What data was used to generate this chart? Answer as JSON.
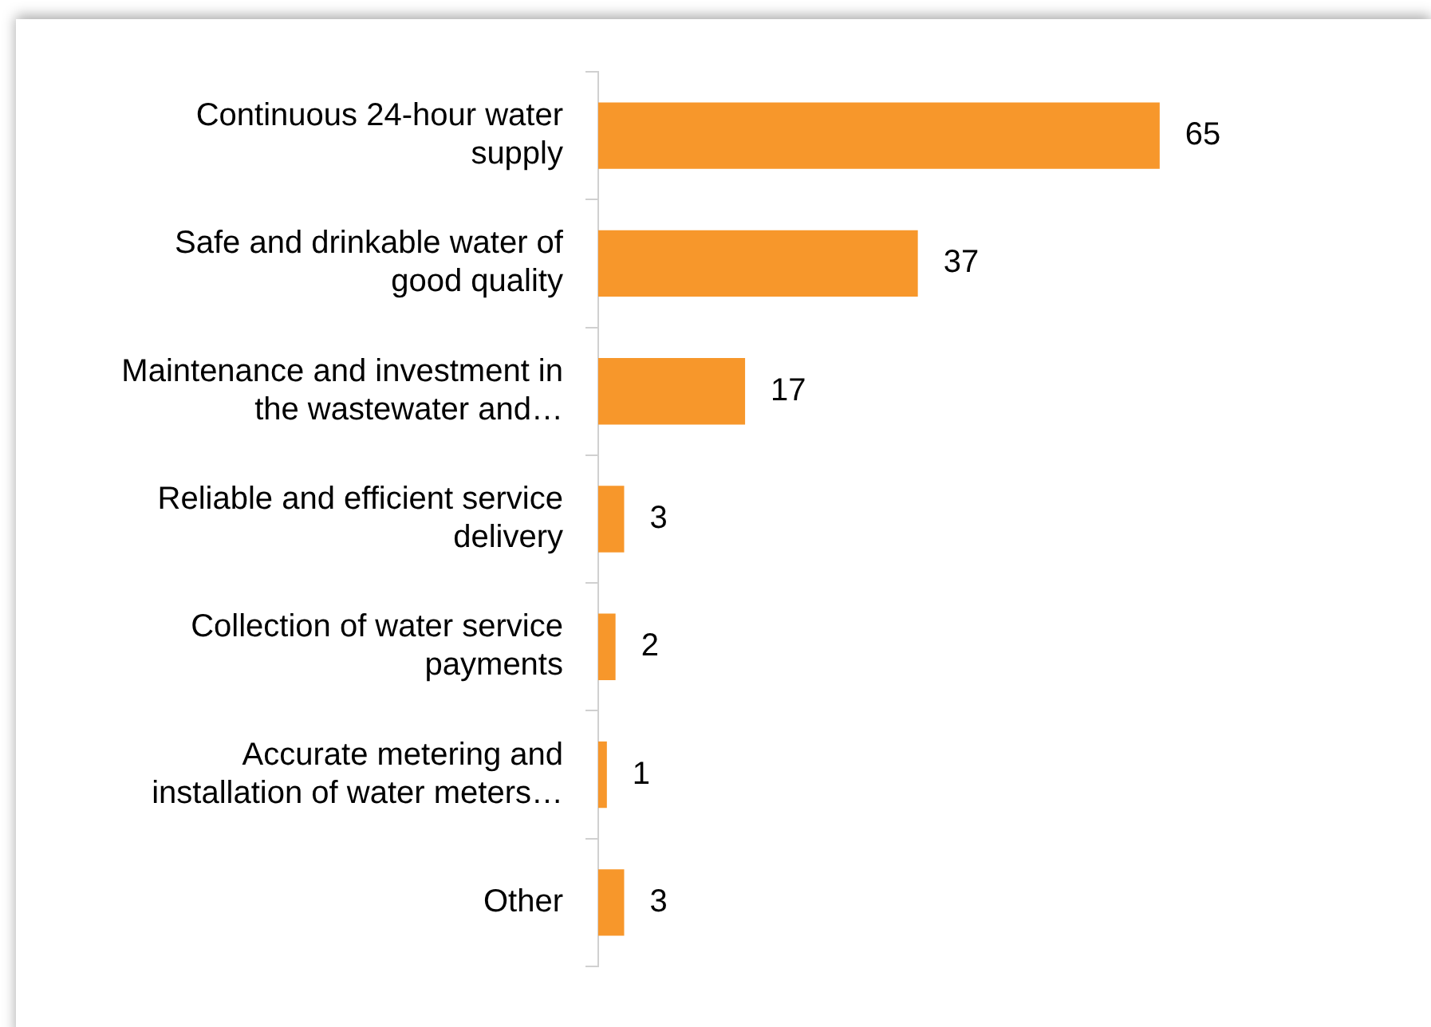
{
  "chart_data": {
    "type": "bar",
    "orientation": "horizontal",
    "categories": [
      "Continuous 24-hour water supply",
      "Safe and drinkable water of good quality",
      "Maintenance and investment in the wastewater and…",
      "Reliable and efficient service delivery",
      "Collection of water service payments",
      "Accurate metering and installation of water meters…",
      "Other"
    ],
    "values": [
      65,
      37,
      17,
      3,
      2,
      1,
      3
    ],
    "color": "#f7972b",
    "data_labels": true
  }
}
